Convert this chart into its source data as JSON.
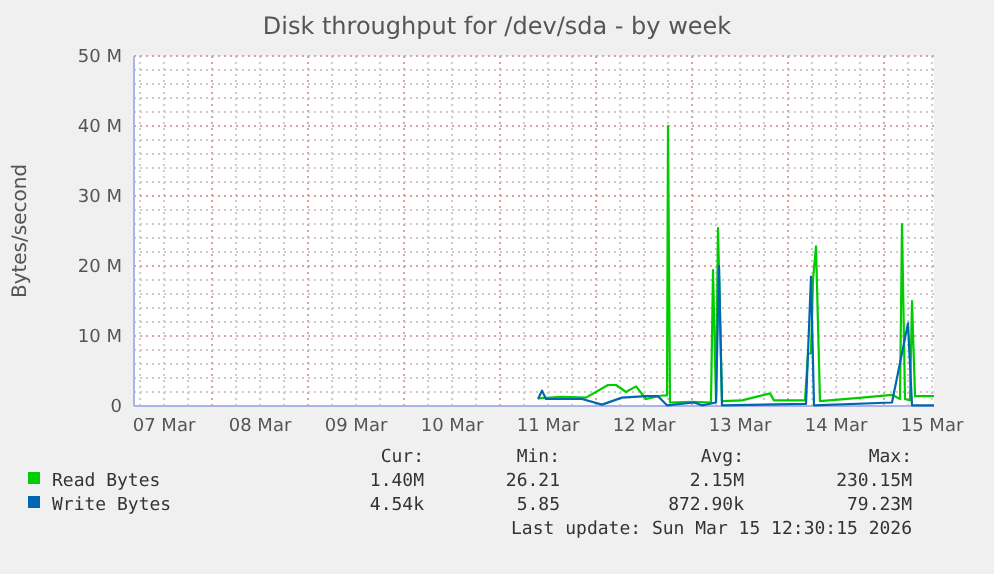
{
  "chart_data": {
    "type": "line",
    "title": "Disk throughput for /dev/sda - by week",
    "ylabel": "Bytes/second",
    "xlim": [
      "2026-03-07T04:30",
      "2026-03-15T12:30"
    ],
    "xticks": [
      {
        "value": "2026-03-07T12:00",
        "label": "07 Mar"
      },
      {
        "value": "2026-03-08T12:00",
        "label": "08 Mar"
      },
      {
        "value": "2026-03-09T12:00",
        "label": "09 Mar"
      },
      {
        "value": "2026-03-10T12:00",
        "label": "10 Mar"
      },
      {
        "value": "2026-03-11T12:00",
        "label": "11 Mar"
      },
      {
        "value": "2026-03-12T12:00",
        "label": "12 Mar"
      },
      {
        "value": "2026-03-13T12:00",
        "label": "13 Mar"
      },
      {
        "value": "2026-03-14T12:00",
        "label": "14 Mar"
      },
      {
        "value": "2026-03-15T12:00",
        "label": "15 Mar"
      }
    ],
    "ylim": [
      0,
      50
    ],
    "yticks": [
      0,
      {
        "value": 10,
        "label": "10 M"
      },
      {
        "value": 20,
        "label": "20 M"
      },
      {
        "value": 30,
        "label": "30 M"
      },
      {
        "value": 40,
        "label": "40 M"
      },
      {
        "value": 50,
        "label": "50 M"
      }
    ],
    "grid": true,
    "legend": "bottom",
    "series": [
      {
        "name": "Read Bytes",
        "color": "#00cc00",
        "x": [
          "2026-03-11T09:30",
          "2026-03-11T15:30",
          "2026-03-11T21:30",
          "2026-03-12T03:00",
          "2026-03-12T05:00",
          "2026-03-12T07:30",
          "2026-03-12T10:00",
          "2026-03-12T12:30",
          "2026-03-12T16:30",
          "2026-03-12T17:45",
          "2026-03-12T18:00",
          "2026-03-12T18:30",
          "2026-03-13T00:00",
          "2026-03-13T04:45",
          "2026-03-13T05:15",
          "2026-03-13T06:00",
          "2026-03-13T06:30",
          "2026-03-13T07:30",
          "2026-03-13T12:30",
          "2026-03-13T19:30",
          "2026-03-13T20:30",
          "2026-03-14T04:15",
          "2026-03-14T05:00",
          "2026-03-14T05:45",
          "2026-03-14T06:15",
          "2026-03-14T07:00",
          "2026-03-14T08:00",
          "2026-03-14T18:30",
          "2026-03-15T02:00",
          "2026-03-15T04:00",
          "2026-03-15T04:30",
          "2026-03-15T05:15",
          "2026-03-15T06:30",
          "2026-03-15T07:00",
          "2026-03-15T07:45",
          "2026-03-15T12:30"
        ],
        "values": [
          1.1,
          1.3,
          1.2,
          3.0,
          3.0,
          2.0,
          2.8,
          1.0,
          1.5,
          1.5,
          40,
          0.5,
          0.6,
          0.5,
          19.4,
          0.8,
          25.4,
          0.7,
          0.8,
          1.8,
          0.8,
          0.8,
          7.5,
          7.5,
          18,
          22.8,
          0.7,
          1.2,
          1.6,
          1.0,
          26,
          1.0,
          0.8,
          15,
          1.4,
          1.4
        ]
      },
      {
        "name": "Write Bytes",
        "color": "#0066b3",
        "x": [
          "2026-03-11T09:30",
          "2026-03-11T10:30",
          "2026-03-11T11:30",
          "2026-03-11T20:30",
          "2026-03-12T01:30",
          "2026-03-12T06:30",
          "2026-03-12T12:30",
          "2026-03-12T15:30",
          "2026-03-12T17:45",
          "2026-03-13T00:30",
          "2026-03-13T02:30",
          "2026-03-13T06:00",
          "2026-03-13T06:45",
          "2026-03-13T07:30",
          "2026-03-14T04:30",
          "2026-03-14T05:45",
          "2026-03-14T06:30",
          "2026-03-15T02:00",
          "2026-03-15T06:00",
          "2026-03-15T07:00",
          "2026-03-15T12:30"
        ],
        "values": [
          1.0,
          2.2,
          1.0,
          1.0,
          0.2,
          1.2,
          1.4,
          1.4,
          0.1,
          0.5,
          0.1,
          0.5,
          20,
          0.1,
          0.3,
          18.5,
          0.1,
          0.5,
          11.8,
          0.1,
          0.1
        ]
      }
    ],
    "annotations": [
      "Cur:",
      "Min:",
      "Avg:",
      "Max:",
      "1.40M",
      "26.21",
      "2.15M",
      "230.15M",
      "4.54k",
      "5.85",
      "872.90k",
      "79.23M",
      "Last update: Sun Mar 15 12:30:15 2026"
    ]
  }
}
